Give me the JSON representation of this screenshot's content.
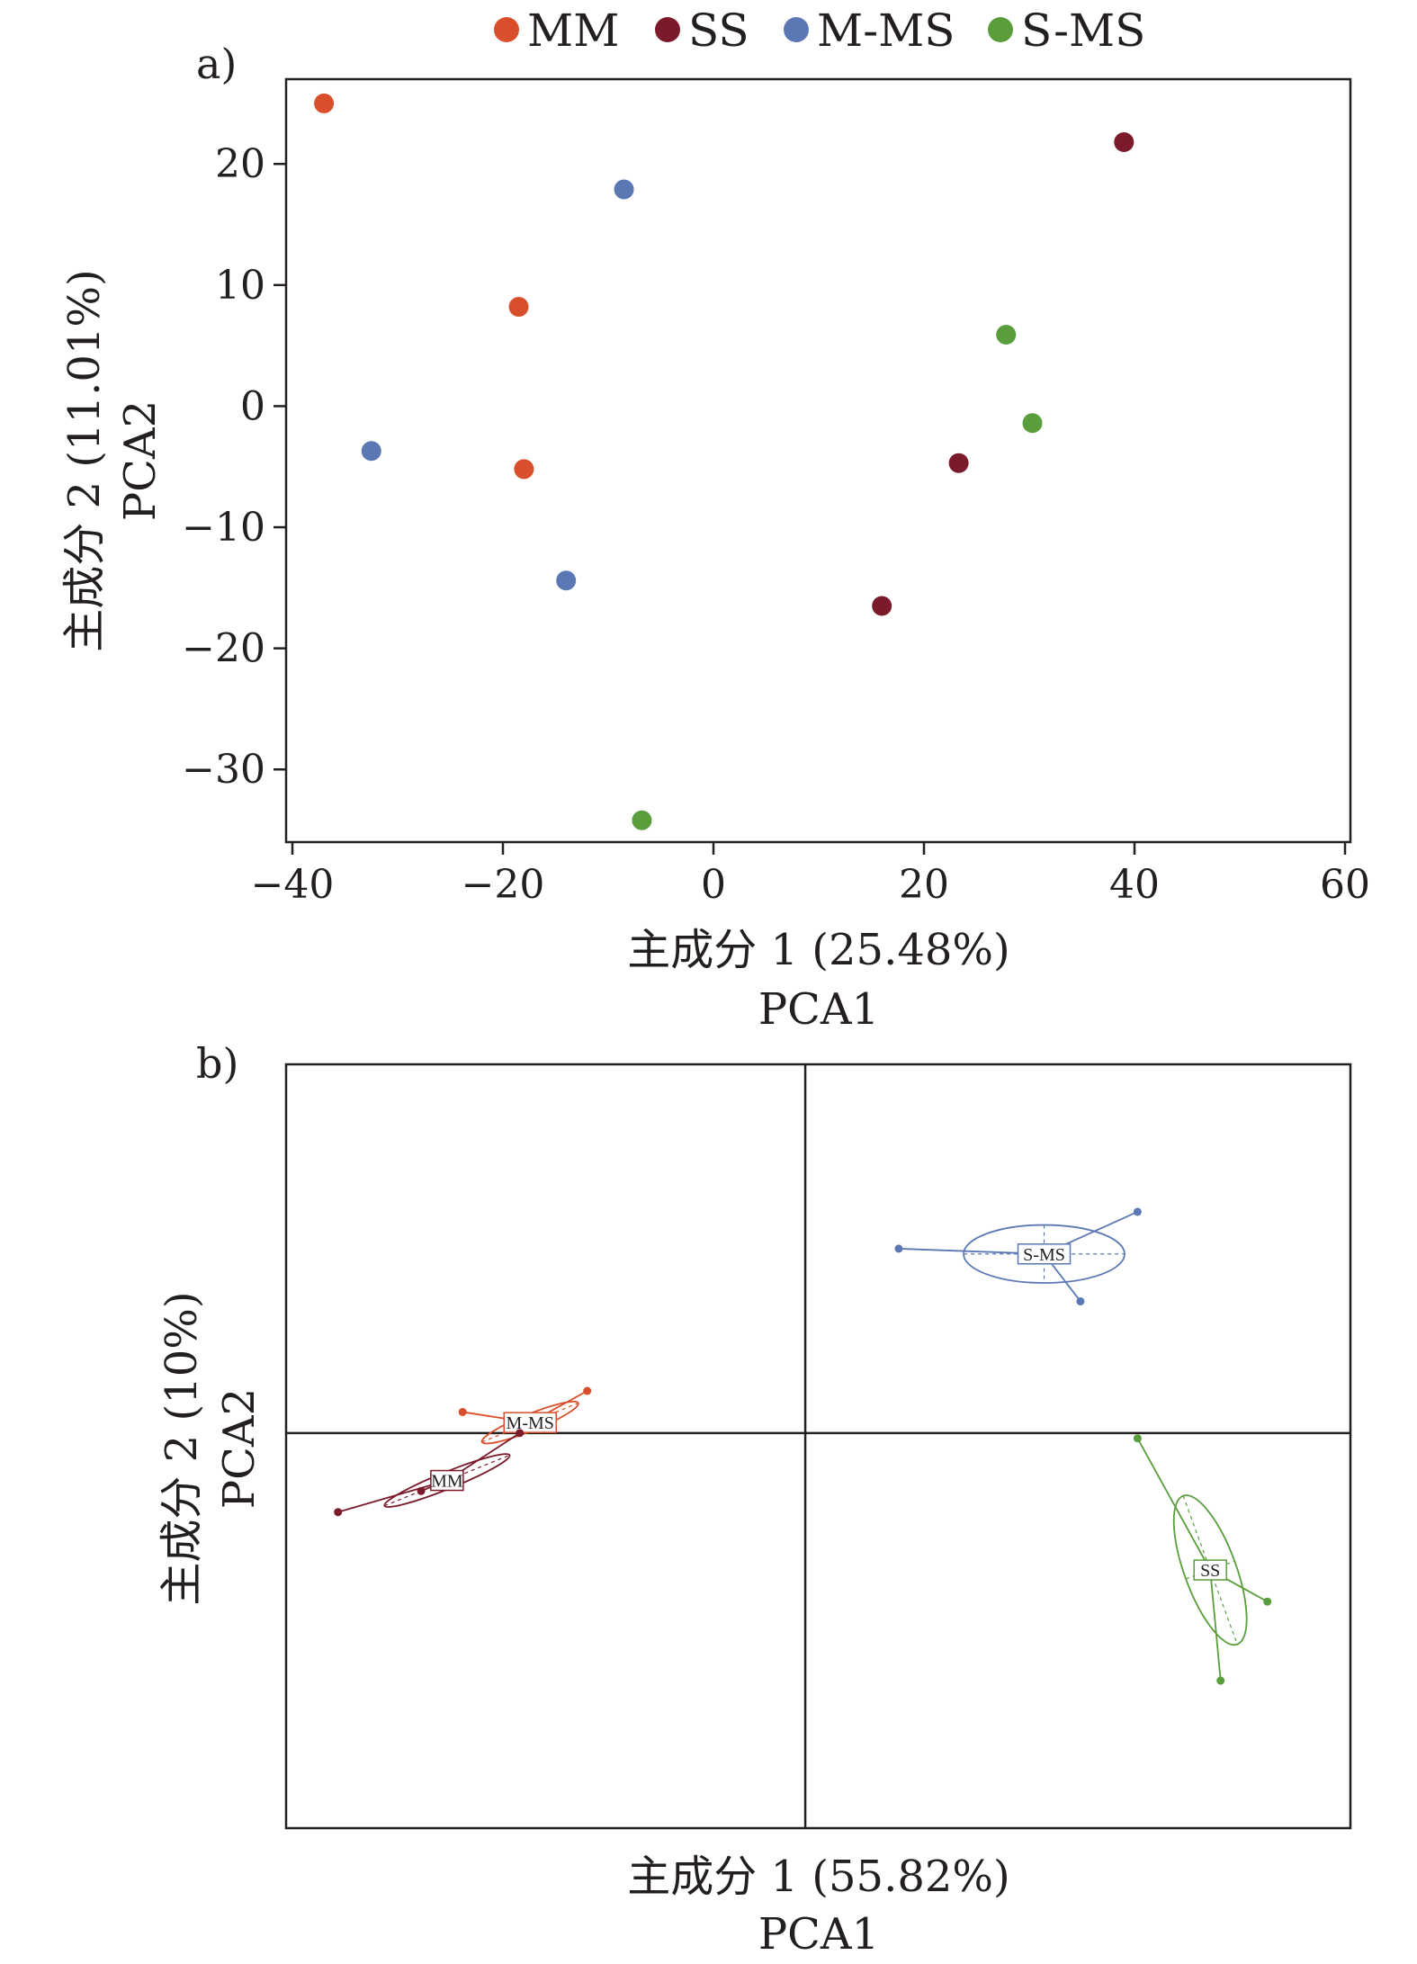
{
  "legend": {
    "items": [
      {
        "label": "MM",
        "color": "#d94f2b"
      },
      {
        "label": "SS",
        "color": "#7a1a2a"
      },
      {
        "label": "M-MS",
        "color": "#5b78b5"
      },
      {
        "label": "S-MS",
        "color": "#5a9e3c"
      }
    ]
  },
  "chart_data": [
    {
      "type": "scatter",
      "panel_label": "a)",
      "xlabel": "主成分 1 (25.48%)",
      "xlabel2": "PCA1",
      "ylabel": "主成分 2 (11.01%)",
      "ylabel2": "PCA2",
      "xlim": [
        -40,
        60
      ],
      "ylim": [
        -36,
        27
      ],
      "xticks": [
        -40,
        -20,
        0,
        20,
        40,
        60
      ],
      "xtick_labels": [
        "−40",
        "−20",
        "0",
        "20",
        "40",
        "60"
      ],
      "yticks": [
        -30,
        -20,
        -10,
        0,
        10,
        20
      ],
      "ytick_labels": [
        "−30",
        "−20",
        "−10",
        "0",
        "10",
        "20"
      ],
      "grid": false,
      "legend_position": "top",
      "series": [
        {
          "name": "MM",
          "color": "#d94f2b",
          "points": [
            [
              -37,
              25
            ],
            [
              -18.5,
              8.2
            ],
            [
              -18,
              -5.2
            ]
          ]
        },
        {
          "name": "SS",
          "color": "#7a1a2a",
          "points": [
            [
              39,
              21.8
            ],
            [
              23.3,
              -4.7
            ],
            [
              16,
              -16.5
            ]
          ]
        },
        {
          "name": "M-MS",
          "color": "#5b78b5",
          "points": [
            [
              -8.5,
              17.9
            ],
            [
              -32.5,
              -3.7
            ],
            [
              -14,
              -14.4
            ]
          ]
        },
        {
          "name": "S-MS",
          "color": "#5a9e3c",
          "points": [
            [
              27.8,
              5.9
            ],
            [
              30.3,
              -1.4
            ],
            [
              -6.8,
              -34.2
            ]
          ]
        }
      ]
    },
    {
      "type": "scatter",
      "panel_label": "b)",
      "xlabel": "主成分 1 (55.82%)",
      "xlabel2": "PCA1",
      "ylabel": "主成分 2 (10%)",
      "ylabel2": "PCA2",
      "xlim": [
        -10,
        10.5
      ],
      "ylim": [
        -7.5,
        7
      ],
      "axes_through_origin": true,
      "ticks": false,
      "grid": false,
      "groups": [
        {
          "name": "S-MS",
          "color": "#5b78b5",
          "centroid": [
            4.6,
            3.4
          ],
          "points": [
            [
              1.8,
              3.5
            ],
            [
              6.4,
              4.2
            ],
            [
              5.3,
              2.5
            ]
          ],
          "ellipse": {
            "rx": 1.55,
            "ry": 0.55,
            "angle": 0
          }
        },
        {
          "name": "SS",
          "color": "#5a9e3c",
          "centroid": [
            7.8,
            -2.6
          ],
          "points": [
            [
              6.4,
              -0.1
            ],
            [
              8.9,
              -3.2
            ],
            [
              8.0,
              -4.7
            ]
          ],
          "ellipse": {
            "rx": 0.5,
            "ry": 1.5,
            "angle": -20
          }
        },
        {
          "name": "M-MS",
          "color": "#d94f2b",
          "centroid": [
            -5.3,
            0.2
          ],
          "points": [
            [
              -4.2,
              0.8
            ],
            [
              -6.6,
              0.4
            ]
          ],
          "ellipse": {
            "rx": 1.0,
            "ry": 0.16,
            "angle": -22
          }
        },
        {
          "name": "MM",
          "color": "#7a1a2a",
          "centroid": [
            -6.9,
            -0.9
          ],
          "points": [
            [
              -9.0,
              -1.5
            ],
            [
              -5.5,
              0.0
            ],
            [
              -7.4,
              -1.1
            ]
          ],
          "ellipse": {
            "rx": 1.3,
            "ry": 0.16,
            "angle": -22
          }
        }
      ]
    }
  ]
}
